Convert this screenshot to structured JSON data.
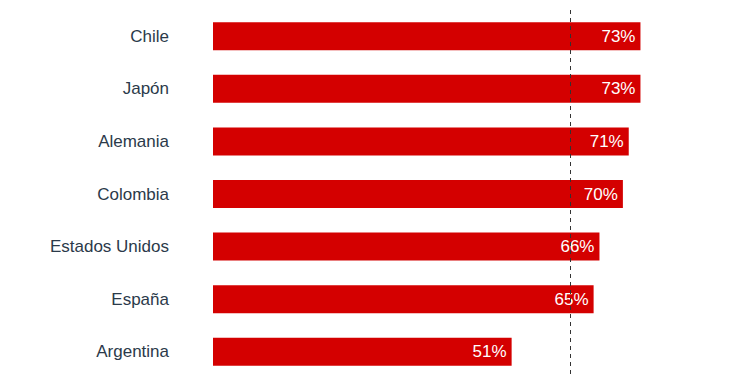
{
  "chart_data": {
    "type": "bar",
    "orientation": "horizontal",
    "categories": [
      "Chile",
      "Japón",
      "Alemania",
      "Colombia",
      "Estados Unidos",
      "España",
      "Argentina"
    ],
    "values": [
      73,
      73,
      71,
      70,
      66,
      65,
      51
    ],
    "value_labels": [
      "73%",
      "73%",
      "71%",
      "70%",
      "66%",
      "65%",
      "51%"
    ],
    "color": "#d40000",
    "xlim": [
      0,
      90
    ],
    "reference_line": 61,
    "data_labels": true,
    "tick_labels": "y",
    "grid": false
  }
}
